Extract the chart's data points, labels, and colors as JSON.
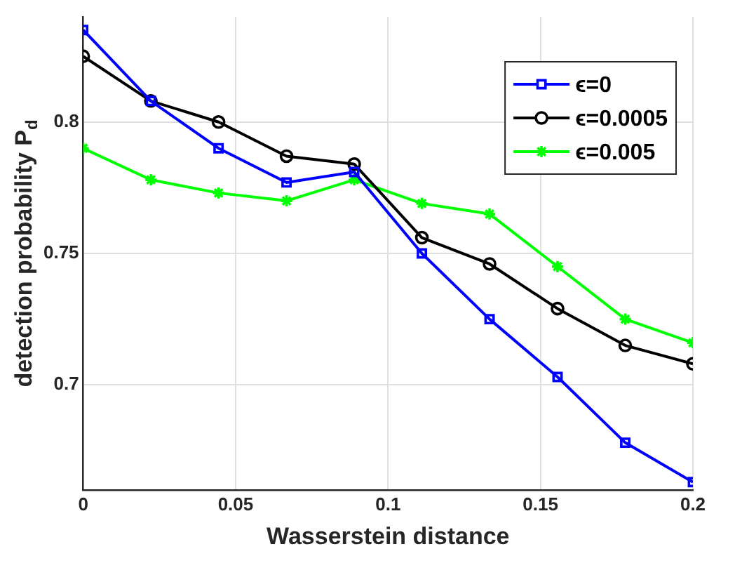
{
  "chart_data": {
    "type": "line",
    "xlabel": "Wasserstein distance",
    "ylabel": "detection probability P$_{d}$",
    "x": [
      0,
      0.0222,
      0.0444,
      0.0667,
      0.0889,
      0.1111,
      0.1333,
      0.1556,
      0.1778,
      0.2
    ],
    "xlim": [
      0,
      0.2
    ],
    "xticks": [
      0,
      0.05,
      0.1,
      0.15,
      0.2
    ],
    "ylim": [
      0.66,
      0.84
    ],
    "yticks": [
      0.7,
      0.75,
      0.8
    ],
    "grid": true,
    "legend": "top right",
    "line_style": "solid",
    "series": [
      {
        "name": "ϵ=0",
        "color": "#0000ff",
        "marker": "square",
        "values": [
          0.835,
          0.808,
          0.79,
          0.777,
          0.781,
          0.75,
          0.725,
          0.703,
          0.678,
          0.663
        ]
      },
      {
        "name": "ϵ=0.0005",
        "color": "#000000",
        "marker": "circle",
        "values": [
          0.825,
          0.808,
          0.8,
          0.787,
          0.784,
          0.756,
          0.746,
          0.729,
          0.715,
          0.708
        ]
      },
      {
        "name": "ϵ=0.005",
        "color": "#00ff00",
        "marker": "cross",
        "values": [
          0.79,
          0.778,
          0.773,
          0.77,
          0.778,
          0.769,
          0.765,
          0.745,
          0.725,
          0.716
        ]
      }
    ]
  }
}
